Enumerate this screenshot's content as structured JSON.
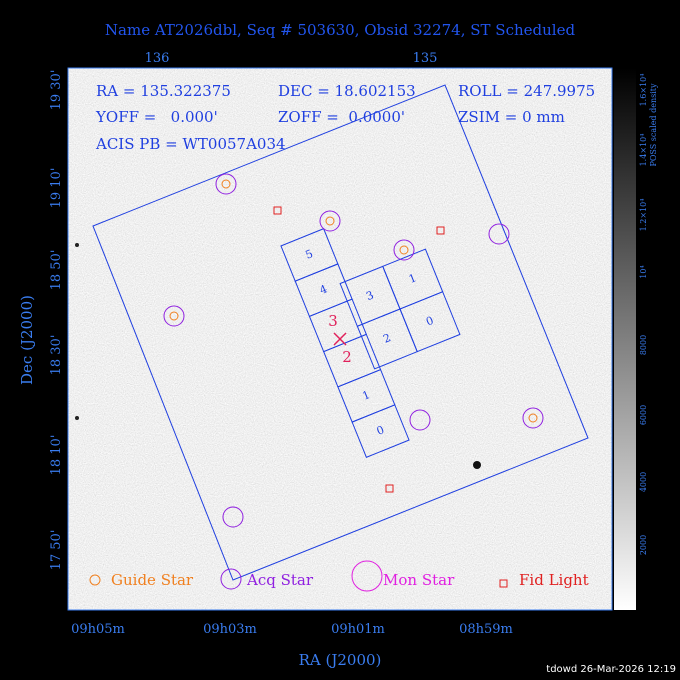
{
  "header": {
    "title": "Name AT2026dbl, Seq # 503630, Obsid 32274, ST Scheduled"
  },
  "axes": {
    "top_ticks": [
      "136",
      "135"
    ],
    "left_ticks": [
      "19 30'",
      "19 10'",
      "18 50'",
      "18 30'",
      "18 10'",
      "17 50'"
    ],
    "bottom_ticks": [
      "09h05m",
      "09h03m",
      "09h01m",
      "08h59m"
    ],
    "x_label": "RA (J2000)",
    "y_label": "Dec (J2000)"
  },
  "info": [
    "RA = 135.322375",
    "DEC = 18.602153",
    "ROLL = 247.9975",
    "YOFF =   0.000'",
    "ZOFF =  0.0000'",
    "ZSIM = 0 mm",
    "ACIS PB = WT0057A034"
  ],
  "chips": {
    "s_array": [
      "5",
      "4",
      "1",
      "0"
    ],
    "i_array": [
      "3",
      "1",
      "2",
      "0"
    ],
    "pointing": [
      "3",
      "2"
    ]
  },
  "legend": [
    "Guide Star",
    "Acq Star",
    "Mon Star",
    "Fid Light"
  ],
  "colorbar": {
    "ticks": [
      "1.6×10⁴",
      "1.4×10⁴",
      "1.2×10⁴",
      "10⁴",
      "8000",
      "6000",
      "4000",
      "2000"
    ],
    "label": "POSS scaled density"
  },
  "footer": "tdowd 26-Mar-2026 12:19"
}
